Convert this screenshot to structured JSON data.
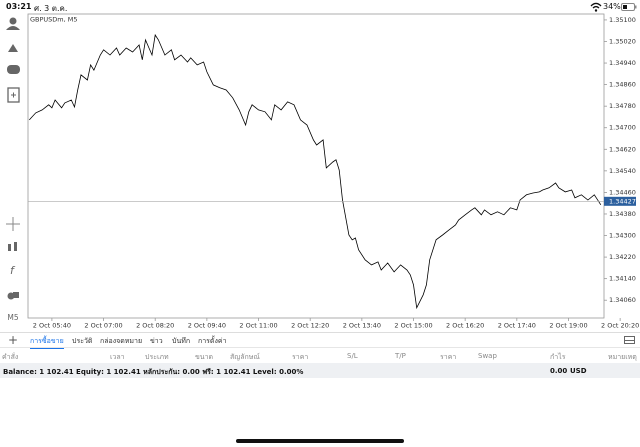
{
  "status": {
    "time": "03:21",
    "date": "ศ. 3 ต.ค.",
    "battery": "34%"
  },
  "toolbar": {
    "timeframe": "M5"
  },
  "chart_data": {
    "type": "line",
    "title": "GBPUSDm, M5",
    "color": "#000000",
    "x": [
      305,
      315,
      325,
      335,
      340,
      345,
      355,
      360,
      370,
      375,
      380,
      385,
      395,
      400,
      405,
      415,
      420,
      430,
      440,
      445,
      455,
      465,
      475,
      480,
      485,
      495,
      500,
      505,
      515,
      525,
      530,
      540,
      550,
      555,
      565,
      575,
      580,
      590,
      600,
      610,
      620,
      630,
      640,
      645,
      650,
      660,
      670,
      680,
      685,
      695,
      705,
      715,
      725,
      735,
      745,
      750,
      760,
      765,
      775,
      780,
      785,
      790,
      800,
      805,
      810,
      815,
      825,
      835,
      845,
      850,
      860,
      870,
      880,
      890,
      895,
      900,
      905,
      915,
      920,
      925,
      935,
      945,
      955,
      965,
      970,
      980,
      990,
      995,
      1005,
      1010,
      1020,
      1030,
      1040,
      1050,
      1060,
      1065,
      1075,
      1085,
      1095,
      1100,
      1110,
      1120,
      1125,
      1135,
      1145,
      1150,
      1160,
      1170,
      1180,
      1190
    ],
    "values": [
      1.34729,
      1.34755,
      1.34766,
      1.34785,
      1.34774,
      1.34803,
      1.34774,
      1.34792,
      1.34803,
      1.34777,
      1.3484,
      1.34896,
      1.34877,
      1.34933,
      1.34914,
      1.3497,
      1.34989,
      1.3497,
      1.34996,
      1.3497,
      1.34996,
      1.34981,
      1.35007,
      1.34952,
      1.35026,
      1.3497,
      1.35044,
      1.35026,
      1.3497,
      1.34989,
      1.34952,
      1.3497,
      1.34944,
      1.34959,
      1.34933,
      1.34944,
      1.34907,
      1.34859,
      1.34848,
      1.3484,
      1.34811,
      1.34766,
      1.3471,
      1.34759,
      1.34785,
      1.34766,
      1.34759,
      1.34729,
      1.34785,
      1.34766,
      1.34796,
      1.34785,
      1.34729,
      1.3471,
      1.34655,
      1.34636,
      1.34655,
      1.34551,
      1.34573,
      1.34581,
      1.34543,
      1.34432,
      1.34302,
      1.34284,
      1.34291,
      1.34247,
      1.3421,
      1.34191,
      1.34202,
      1.34172,
      1.34198,
      1.34165,
      1.34191,
      1.34172,
      1.34154,
      1.34117,
      1.34032,
      1.3408,
      1.34117,
      1.3421,
      1.34284,
      1.34302,
      1.34321,
      1.34339,
      1.34358,
      1.34377,
      1.34395,
      1.34403,
      1.34377,
      1.34395,
      1.34377,
      1.34388,
      1.34377,
      1.34403,
      1.34395,
      1.34432,
      1.34451,
      1.34458,
      1.34462,
      1.34469,
      1.34477,
      1.34495,
      1.34477,
      1.34462,
      1.34469,
      1.3444,
      1.34451,
      1.34432,
      1.34451,
      1.34414
    ],
    "xlim": [
      303,
      1195
    ],
    "xticks": [
      {
        "value": 340,
        "label": "2 Oct 05:40"
      },
      {
        "value": 420,
        "label": "2 Oct 07:00"
      },
      {
        "value": 500,
        "label": "2 Oct 08:20"
      },
      {
        "value": 580,
        "label": "2 Oct 09:40"
      },
      {
        "value": 660,
        "label": "2 Oct 11:00"
      },
      {
        "value": 740,
        "label": "2 Oct 12:20"
      },
      {
        "value": 820,
        "label": "2 Oct 13:40"
      },
      {
        "value": 900,
        "label": "2 Oct 15:00"
      },
      {
        "value": 980,
        "label": "2 Oct 16:20"
      },
      {
        "value": 1060,
        "label": "2 Oct 17:40"
      },
      {
        "value": 1140,
        "label": "2 Oct 19:00"
      },
      {
        "value": 1220,
        "label": "2 Oct 20:20"
      }
    ],
    "ylim": [
      1.33994,
      1.35122
    ],
    "yticks": [
      {
        "value": 1.351,
        "label": "1.35100"
      },
      {
        "value": 1.3502,
        "label": "1.35020"
      },
      {
        "value": 1.3494,
        "label": "1.34940"
      },
      {
        "value": 1.3486,
        "label": "1.34860"
      },
      {
        "value": 1.3478,
        "label": "1.34780"
      },
      {
        "value": 1.347,
        "label": "1.34700"
      },
      {
        "value": 1.3462,
        "label": "1.34620"
      },
      {
        "value": 1.3454,
        "label": "1.34540"
      },
      {
        "value": 1.3446,
        "label": "1.34460"
      },
      {
        "value": 1.3438,
        "label": "1.34380"
      },
      {
        "value": 1.343,
        "label": "1.34300"
      },
      {
        "value": 1.3422,
        "label": "1.34220"
      },
      {
        "value": 1.3414,
        "label": "1.34140"
      },
      {
        "value": 1.3406,
        "label": "1.34060"
      }
    ],
    "last_price": 1.34427,
    "last_price_color": "#2b5f9e",
    "grid": false
  },
  "tabs": [
    "การซื้อขาย",
    "ประวัติ",
    "กล่องจดหมาย",
    "ข่าว",
    "บันทึก",
    "การตั้งค่า"
  ],
  "columns": [
    "คำสั่ง",
    "เวลา",
    "ประเภท",
    "ขนาด",
    "สัญลักษณ์",
    "ราคา",
    "S/L",
    "T/P",
    "ราคา",
    "Swap",
    "กำไร",
    "หมายเหตุ"
  ],
  "balance": {
    "summary": "Balance: 1 102.41 Equity: 1 102.41 หลักประกัน: 0.00 ฟรี: 1 102.41 Level: 0.00%",
    "profit": "0.00",
    "currency": "USD"
  }
}
